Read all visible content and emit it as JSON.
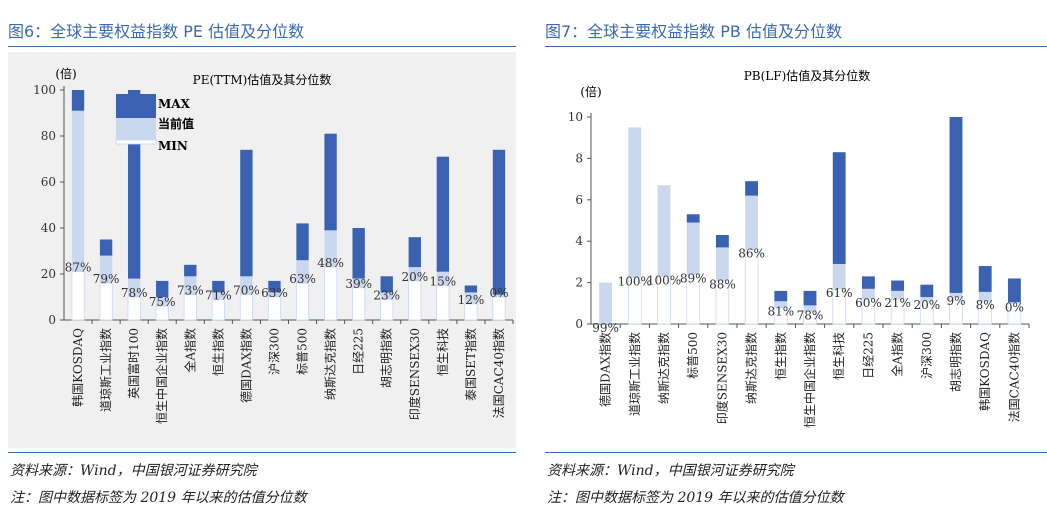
{
  "figures": [
    {
      "id": "fig6",
      "caption": "图6：全球主要权益指数 PE 估值及分位数",
      "source": "资料来源：Wind，中国银河证券研究院",
      "note": "注：图中数据标签为 2019 年以来的估值分位数"
    },
    {
      "id": "fig7",
      "caption": "图7：全球主要权益指数 PB 估值及分位数",
      "source": "资料来源：Wind，中国银河证券研究院",
      "note": "注：图中数据标签为 2019 年以来的估值分位数"
    }
  ],
  "legend": {
    "max": "MAX",
    "current": "当前值",
    "min": "MIN"
  },
  "colors": {
    "upper": "#3b62b2",
    "lower": "#c9d7ef",
    "base": "#ffffff",
    "outline": "#c9d7ef",
    "axis": "#555555",
    "accent": "#3b6ab0"
  },
  "chart_data": [
    {
      "type": "bar",
      "title": "PE(TTM)估值及其分位数",
      "ylabel": "(倍)",
      "ylim": [
        0,
        100
      ],
      "yticks": [
        "0",
        "20",
        "40",
        "60",
        "80",
        "100"
      ],
      "legend_position": "top",
      "categories": [
        "韩国KOSDAQ",
        "道琼斯工业指数",
        "英国富时100",
        "恒生中国企业指数",
        "全A指数",
        "恒生指数",
        "德国DAX指数",
        "沪深300",
        "标普500",
        "纳斯达克指数",
        "日经225",
        "胡志明指数",
        "印度SENSEX30",
        "恒生科技",
        "泰国SET指数",
        "法国CAC40指数"
      ],
      "series": [
        {
          "name": "MIN",
          "values": [
            21,
            16,
            10,
            6,
            11,
            9,
            11,
            10,
            16,
            23,
            14,
            9,
            17,
            15,
            7,
            10
          ]
        },
        {
          "name": "当前值",
          "values": [
            91,
            28,
            18,
            10,
            19,
            12,
            19,
            12,
            26,
            39,
            18,
            12,
            23,
            21,
            12,
            11
          ]
        },
        {
          "name": "MAX",
          "values": [
            100,
            35,
            100,
            17,
            24,
            17,
            74,
            17,
            42,
            81,
            40,
            19,
            36,
            71,
            15,
            74
          ]
        }
      ],
      "data_labels": [
        "87%",
        "79%",
        "78%",
        "75%",
        "73%",
        "71%",
        "70%",
        "63%",
        "63%",
        "48%",
        "39%",
        "23%",
        "20%",
        "15%",
        "12%",
        "0%"
      ]
    },
    {
      "type": "bar",
      "title": "PB(LF)估值及其分位数",
      "ylabel": "(倍)",
      "ylim": [
        0,
        10
      ],
      "yticks": [
        "0",
        "2",
        "4",
        "6",
        "8",
        "10"
      ],
      "categories": [
        "德国DAX指数",
        "道琼斯工业指数",
        "纳斯达克指数",
        "标普500",
        "印度SENSEX30",
        "纳斯达克指数",
        "恒生指数",
        "恒生中国企业指数",
        "恒生科技",
        "日经225",
        "全A指数",
        "沪深300",
        "胡志明指数",
        "韩国KOSDAQ",
        "法国CAC40指数"
      ],
      "series": [
        {
          "name": "MIN",
          "values": [
            0,
            2.25,
            2.3,
            2.4,
            2.1,
            3.6,
            0.8,
            0.6,
            1.7,
            1.2,
            1.2,
            1.1,
            1.3,
            1.1,
            1.0
          ]
        },
        {
          "name": "当前值",
          "values": [
            2.0,
            9.5,
            6.7,
            4.9,
            3.7,
            6.2,
            1.1,
            0.9,
            2.9,
            1.7,
            1.6,
            1.3,
            1.5,
            1.55,
            1.05
          ]
        },
        {
          "name": "MAX",
          "values": [
            2.0,
            9.5,
            6.7,
            5.3,
            4.3,
            6.9,
            1.6,
            1.6,
            8.3,
            2.3,
            2.1,
            1.9,
            10.0,
            2.8,
            2.2
          ]
        }
      ],
      "data_labels": [
        "99%",
        "100%",
        "100%",
        "89%",
        "88%",
        "86%",
        "81%",
        "78%",
        "61%",
        "60%",
        "21%",
        "20%",
        "9%",
        "8%",
        "0%"
      ]
    }
  ]
}
